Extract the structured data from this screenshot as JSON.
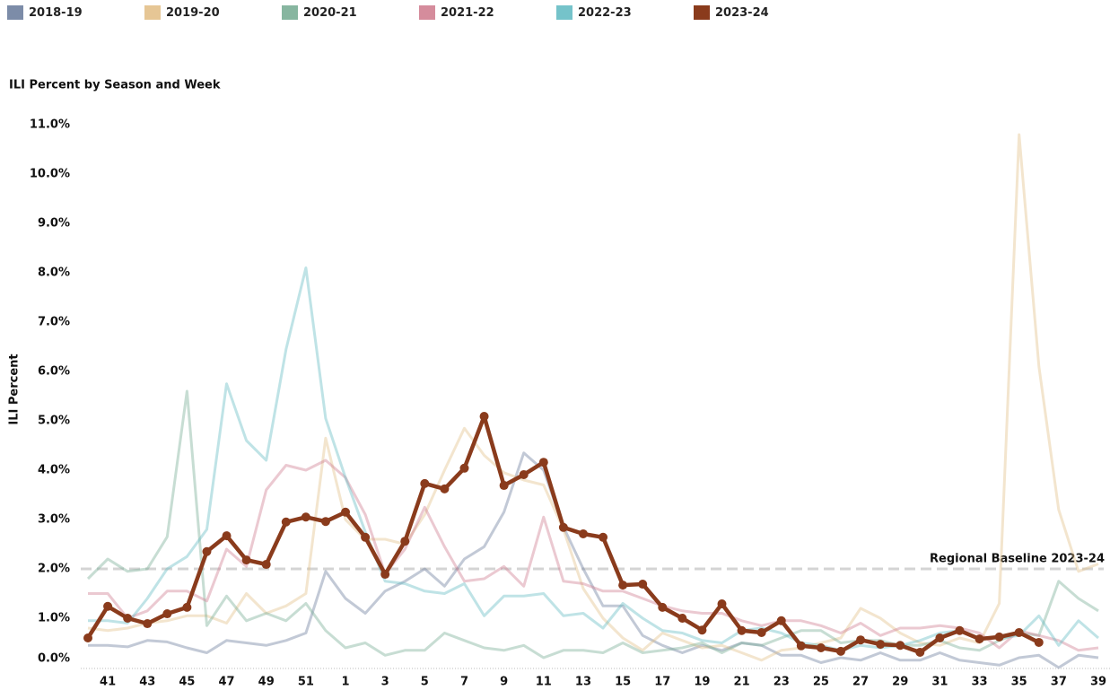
{
  "chart_data": {
    "type": "line",
    "title": "ILI Percent by Season and Week",
    "y_label": "ILI Percent",
    "categories": [
      null,
      "41",
      null,
      "43",
      null,
      "45",
      null,
      "47",
      null,
      "49",
      null,
      "51",
      null,
      "1",
      null,
      "3",
      null,
      "5",
      null,
      "7",
      null,
      "9",
      null,
      "11",
      null,
      "13",
      null,
      "15",
      null,
      "17",
      null,
      "19",
      null,
      "21",
      null,
      "23",
      null,
      "25",
      null,
      "27",
      null,
      "29",
      null,
      "31",
      null,
      "33",
      null,
      "35",
      null,
      "37",
      null,
      "39"
    ],
    "ylim": [
      0,
      11.2
    ],
    "yticks": [
      {
        "value": 0,
        "label": "0.0%"
      },
      {
        "value": 1,
        "label": "1.0%"
      },
      {
        "value": 2,
        "label": "2.0%"
      },
      {
        "value": 3,
        "label": "3.0%"
      },
      {
        "value": 4,
        "label": "4.0%"
      },
      {
        "value": 5,
        "label": "5.0%"
      },
      {
        "value": 6,
        "label": "6.0%"
      },
      {
        "value": 7,
        "label": "7.0%"
      },
      {
        "value": 8,
        "label": "8.0%"
      },
      {
        "value": 9,
        "label": "9.0%"
      },
      {
        "value": 10,
        "label": "10.0%"
      },
      {
        "value": 11,
        "label": "11.0%"
      }
    ],
    "baseline": {
      "value": 2,
      "label": "Regional Baseline 2023-24"
    },
    "series": [
      {
        "name": "2018-19",
        "color": "#6e7f9e",
        "values": [
          0.45,
          0.45,
          0.42,
          0.55,
          0.52,
          0.4,
          0.3,
          0.55,
          0.5,
          0.45,
          0.55,
          0.7,
          1.95,
          1.4,
          1.1,
          1.55,
          1.75,
          2.0,
          1.65,
          2.2,
          2.45,
          3.15,
          4.35,
          4.0,
          2.85,
          2.0,
          1.25,
          1.25,
          0.65,
          0.45,
          0.3,
          0.45,
          0.35,
          0.5,
          0.45,
          0.25,
          0.25,
          0.1,
          0.2,
          0.15,
          0.3,
          0.15,
          0.15,
          0.3,
          0.15,
          0.1,
          0.05,
          0.2,
          0.25,
          0.0,
          0.25,
          0.2
        ]
      },
      {
        "name": "2019-20",
        "color": "#e3c08a",
        "values": [
          0.8,
          0.75,
          0.8,
          0.9,
          0.95,
          1.05,
          1.05,
          0.9,
          1.5,
          1.1,
          1.25,
          1.5,
          4.65,
          3.0,
          2.6,
          2.6,
          2.5,
          3.1,
          4.0,
          4.85,
          4.3,
          3.95,
          3.8,
          3.7,
          2.8,
          1.6,
          1.0,
          0.6,
          0.35,
          0.7,
          0.55,
          0.4,
          0.45,
          0.3,
          0.15,
          0.35,
          0.4,
          0.5,
          0.6,
          1.2,
          1.0,
          0.7,
          0.5,
          0.45,
          0.6,
          0.5,
          1.3,
          10.8,
          6.1,
          3.2,
          1.95,
          2.1
        ]
      },
      {
        "name": "2020-21",
        "color": "#7aae96",
        "values": [
          1.8,
          2.2,
          1.95,
          2.0,
          2.65,
          5.6,
          0.85,
          1.45,
          0.95,
          1.1,
          0.95,
          1.3,
          0.75,
          0.4,
          0.5,
          0.25,
          0.35,
          0.35,
          0.7,
          0.55,
          0.4,
          0.35,
          0.45,
          0.2,
          0.35,
          0.35,
          0.3,
          0.5,
          0.3,
          0.35,
          0.4,
          0.5,
          0.3,
          0.5,
          0.45,
          0.6,
          0.75,
          0.75,
          0.5,
          0.55,
          0.55,
          0.45,
          0.45,
          0.55,
          0.4,
          0.35,
          0.55,
          0.7,
          0.65,
          1.75,
          1.4,
          1.15
        ]
      },
      {
        "name": "2021-22",
        "color": "#d07f91",
        "values": [
          1.5,
          1.5,
          1.0,
          1.15,
          1.55,
          1.55,
          1.35,
          2.4,
          2.05,
          3.6,
          4.1,
          4.0,
          4.2,
          3.85,
          3.1,
          1.9,
          2.4,
          3.25,
          2.45,
          1.75,
          1.8,
          2.05,
          1.65,
          3.05,
          1.75,
          1.7,
          1.55,
          1.55,
          1.4,
          1.25,
          1.15,
          1.1,
          1.1,
          0.95,
          0.85,
          0.95,
          0.95,
          0.85,
          0.7,
          0.9,
          0.65,
          0.8,
          0.8,
          0.85,
          0.8,
          0.7,
          0.4,
          0.75,
          0.65,
          0.55,
          0.35,
          0.4
        ]
      },
      {
        "name": "2022-23",
        "color": "#66bcc4",
        "values": [
          0.95,
          0.95,
          0.9,
          1.4,
          2.0,
          2.25,
          2.8,
          5.75,
          4.6,
          4.2,
          6.45,
          8.1,
          5.05,
          3.85,
          2.75,
          1.75,
          1.7,
          1.55,
          1.5,
          1.7,
          1.05,
          1.45,
          1.45,
          1.5,
          1.05,
          1.1,
          0.8,
          1.3,
          1.0,
          0.75,
          0.7,
          0.55,
          0.5,
          0.75,
          0.8,
          0.7,
          0.5,
          0.45,
          0.35,
          0.45,
          0.4,
          0.45,
          0.55,
          0.7,
          0.75,
          0.6,
          0.6,
          0.65,
          1.05,
          0.45,
          0.95,
          0.6
        ]
      },
      {
        "name": "2023-24",
        "color": "#8a3b1c",
        "values": [
          0.6,
          1.24,
          1.0,
          0.89,
          1.09,
          1.22,
          2.35,
          2.67,
          2.18,
          2.09,
          2.95,
          3.05,
          2.96,
          3.15,
          2.64,
          1.89,
          2.56,
          3.73,
          3.62,
          4.04,
          5.09,
          3.69,
          3.91,
          4.16,
          2.84,
          2.71,
          2.64,
          1.67,
          1.69,
          1.22,
          1.0,
          0.76,
          1.29,
          0.75,
          0.71,
          0.95,
          0.44,
          0.4,
          0.33,
          0.56,
          0.47,
          0.45,
          0.31,
          0.6,
          0.75,
          0.58,
          0.62,
          0.71,
          0.51,
          null,
          null,
          null
        ]
      }
    ]
  }
}
